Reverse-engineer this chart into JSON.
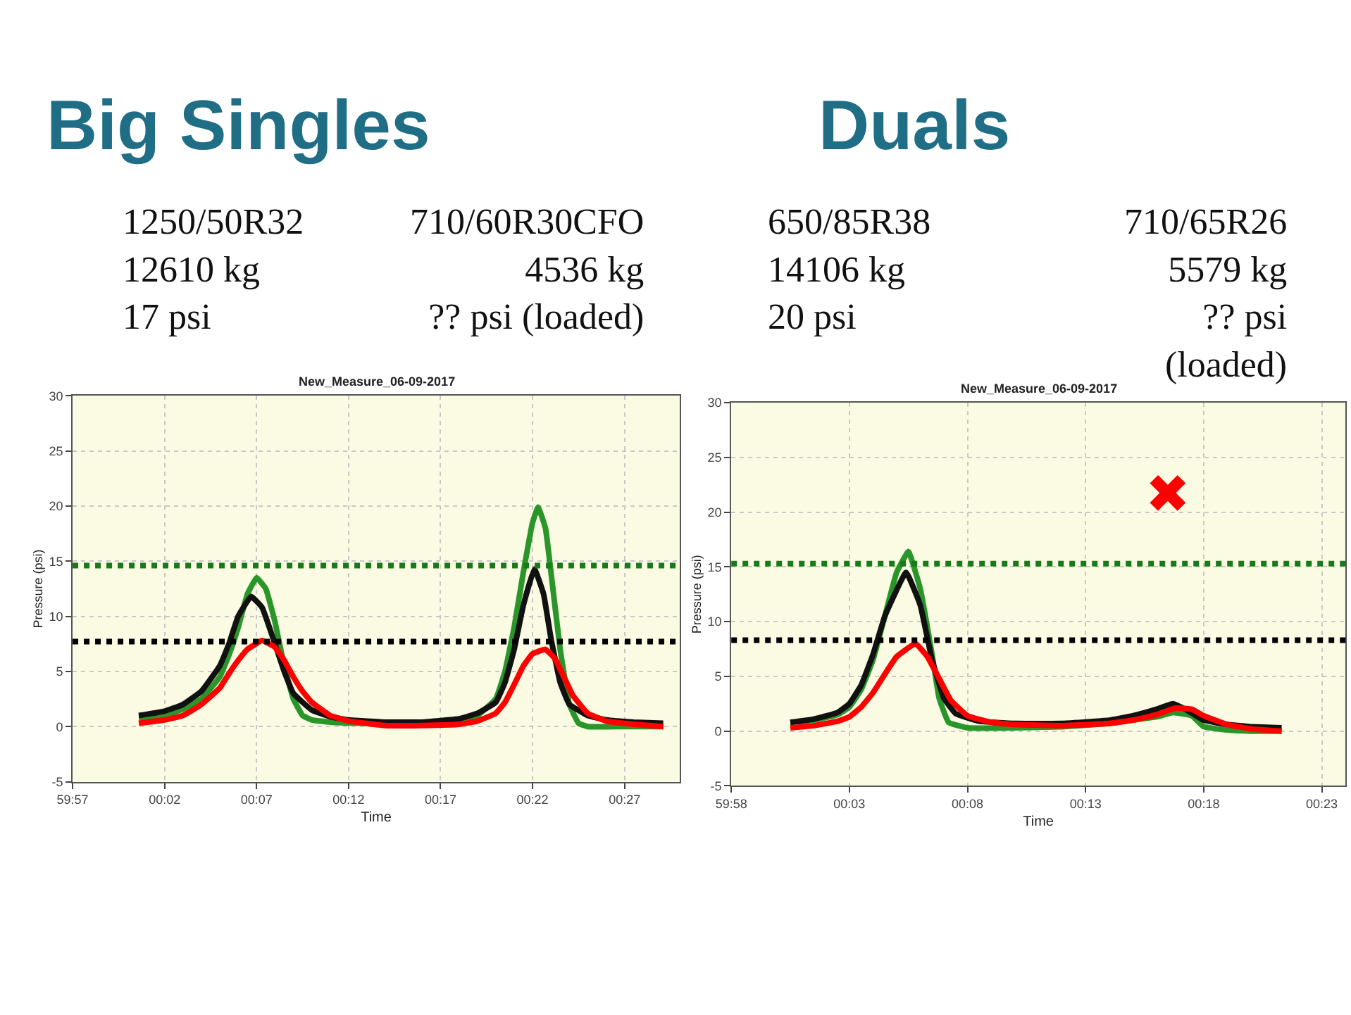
{
  "chart_data": [
    {
      "type": "line",
      "title": "Big Singles",
      "subtitle": "New_Measure_06-09-2017",
      "xlabel": "Time",
      "ylabel": "Pressure (psi)",
      "annotations": [
        "1250/50R32\n12610 kg\n17 psi",
        "710/60R30CFO\n4536 kg\n?? psi (loaded)"
      ],
      "xlim": [
        "2017-06-09T00:59:57",
        "2017-06-09T01:00:30"
      ],
      "xticks": [
        {
          "value": "2017-06-09T00:59:57",
          "label": "59:57"
        },
        {
          "value": "2017-06-09T01:00:02",
          "label": "00:02"
        },
        {
          "value": "2017-06-09T01:00:07",
          "label": "00:07"
        },
        {
          "value": "2017-06-09T01:00:12",
          "label": "00:12"
        },
        {
          "value": "2017-06-09T01:00:17",
          "label": "00:17"
        },
        {
          "value": "2017-06-09T01:00:22",
          "label": "00:22"
        },
        {
          "value": "2017-06-09T01:00:27",
          "label": "00:27"
        }
      ],
      "ylim": [
        -5,
        30
      ],
      "yticks": [
        -5,
        0,
        5,
        10,
        15,
        20,
        25,
        30
      ],
      "grid": true,
      "series": [
        {
          "color": "#2a962a",
          "x": [
            "2017-06-09T01:00:00.6",
            "2017-06-09T01:00:02",
            "2017-06-09T01:00:03",
            "2017-06-09T01:00:04",
            "2017-06-09T01:00:05",
            "2017-06-09T01:00:05.5",
            "2017-06-09T01:00:06",
            "2017-06-09T01:00:06.5",
            "2017-06-09T01:00:07",
            "2017-06-09T01:00:07.5",
            "2017-06-09T01:00:08",
            "2017-06-09T01:00:08.5",
            "2017-06-09T01:00:09",
            "2017-06-09T01:00:09.5",
            "2017-06-09T01:00:10",
            "2017-06-09T01:00:11",
            "2017-06-09T01:00:13",
            "2017-06-09T01:00:15",
            "2017-06-09T01:00:17",
            "2017-06-09T01:00:18",
            "2017-06-09T01:00:19",
            "2017-06-09T01:00:20",
            "2017-06-09T01:00:20.5",
            "2017-06-09T01:00:21",
            "2017-06-09T01:00:21.5",
            "2017-06-09T01:00:22",
            "2017-06-09T01:00:22.3",
            "2017-06-09T01:00:22.7",
            "2017-06-09T01:00:23",
            "2017-06-09T01:00:23.5",
            "2017-06-09T01:00:24",
            "2017-06-09T01:00:24.5",
            "2017-06-09T01:00:25",
            "2017-06-09T01:00:27",
            "2017-06-09T01:00:29.1"
          ],
          "values": [
            0.8,
            1.0,
            1.6,
            2.5,
            4.5,
            6.5,
            9,
            12,
            13.5,
            12.5,
            9.5,
            5.5,
            2.5,
            1.0,
            0.6,
            0.4,
            0.3,
            0.3,
            0.4,
            0.6,
            1.0,
            2.5,
            5,
            9,
            14,
            18.5,
            19.9,
            18,
            14,
            7,
            2,
            0.3,
            0,
            0,
            0
          ]
        },
        {
          "color": "#111111",
          "x": [
            "2017-06-09T01:00:00.6",
            "2017-06-09T01:00:02",
            "2017-06-09T01:00:03",
            "2017-06-09T01:00:04",
            "2017-06-09T01:00:05",
            "2017-06-09T01:00:05.5",
            "2017-06-09T01:00:06",
            "2017-06-09T01:00:06.7",
            "2017-06-09T01:00:07.3",
            "2017-06-09T01:00:08",
            "2017-06-09T01:00:08.5",
            "2017-06-09T01:00:09",
            "2017-06-09T01:00:10",
            "2017-06-09T01:00:11",
            "2017-06-09T01:00:12",
            "2017-06-09T01:00:14",
            "2017-06-09T01:00:16",
            "2017-06-09T01:00:18",
            "2017-06-09T01:00:19",
            "2017-06-09T01:00:20",
            "2017-06-09T01:00:20.5",
            "2017-06-09T01:00:21",
            "2017-06-09T01:00:21.5",
            "2017-06-09T01:00:22.1",
            "2017-06-09T01:00:22.6",
            "2017-06-09T01:00:23",
            "2017-06-09T01:00:23.5",
            "2017-06-09T01:00:24",
            "2017-06-09T01:00:25",
            "2017-06-09T01:00:26",
            "2017-06-09T01:00:27.5",
            "2017-06-09T01:00:29.1"
          ],
          "values": [
            1.0,
            1.4,
            2.0,
            3.2,
            5.5,
            7.5,
            10,
            11.8,
            10.8,
            7.5,
            5,
            3,
            1.5,
            0.9,
            0.6,
            0.4,
            0.4,
            0.7,
            1.2,
            2.2,
            4,
            7,
            11,
            14.3,
            12,
            8,
            4,
            2,
            1,
            0.6,
            0.4,
            0.3
          ]
        },
        {
          "color": "#ff0000",
          "x": [
            "2017-06-09T01:00:00.6",
            "2017-06-09T01:00:02",
            "2017-06-09T01:00:03",
            "2017-06-09T01:00:04",
            "2017-06-09T01:00:05",
            "2017-06-09T01:00:05.5",
            "2017-06-09T01:00:06",
            "2017-06-09T01:00:06.5",
            "2017-06-09T01:00:07.3",
            "2017-06-09T01:00:08",
            "2017-06-09T01:00:08.5",
            "2017-06-09T01:00:09",
            "2017-06-09T01:00:09.5",
            "2017-06-09T01:00:10",
            "2017-06-09T01:00:11",
            "2017-06-09T01:00:12",
            "2017-06-09T01:00:14",
            "2017-06-09T01:00:16",
            "2017-06-09T01:00:18",
            "2017-06-09T01:00:19",
            "2017-06-09T01:00:20",
            "2017-06-09T01:00:20.5",
            "2017-06-09T01:00:21",
            "2017-06-09T01:00:21.5",
            "2017-06-09T01:00:22",
            "2017-06-09T01:00:22.7",
            "2017-06-09T01:00:23.2",
            "2017-06-09T01:00:23.7",
            "2017-06-09T01:00:24.2",
            "2017-06-09T01:00:25",
            "2017-06-09T01:00:26",
            "2017-06-09T01:00:27.5",
            "2017-06-09T01:00:29.1"
          ],
          "values": [
            0.3,
            0.6,
            1.0,
            2.0,
            3.5,
            4.8,
            6.0,
            7.0,
            7.8,
            7.2,
            6,
            4.5,
            3.2,
            2.2,
            1.0,
            0.5,
            0.1,
            0.1,
            0.2,
            0.5,
            1.2,
            2.2,
            3.8,
            5.5,
            6.6,
            7.0,
            6.2,
            4.5,
            2.8,
            1.2,
            0.5,
            0.2,
            0
          ]
        }
      ],
      "ref_lines": [
        {
          "axis": "y",
          "value": 14.6,
          "color": "#1a7a1a",
          "line_style": "dotted"
        },
        {
          "axis": "y",
          "value": 7.7,
          "color": "#000000",
          "line_style": "dotted"
        }
      ]
    },
    {
      "type": "line",
      "title": "Duals",
      "subtitle": "New_Measure_06-09-2017",
      "xlabel": "Time",
      "ylabel": "Pressure (psi)",
      "annotations": [
        "650/85R38\n14106 kg\n20 psi",
        "710/65R26\n5579 kg\n?? psi\n(loaded)",
        "✖"
      ],
      "xlim": [
        "2017-06-09T00:59:58",
        "2017-06-09T01:00:24"
      ],
      "xticks": [
        {
          "value": "2017-06-09T00:59:58",
          "label": "59:58"
        },
        {
          "value": "2017-06-09T01:00:03",
          "label": "00:03"
        },
        {
          "value": "2017-06-09T01:00:08",
          "label": "00:08"
        },
        {
          "value": "2017-06-09T01:00:13",
          "label": "00:13"
        },
        {
          "value": "2017-06-09T01:00:18",
          "label": "00:18"
        },
        {
          "value": "2017-06-09T01:00:23",
          "label": "00:23"
        }
      ],
      "ylim": [
        -5,
        30
      ],
      "yticks": [
        -5,
        0,
        5,
        10,
        15,
        20,
        25,
        30
      ],
      "grid": true,
      "series": [
        {
          "color": "#2a962a",
          "x": [
            "2017-06-09T01:00:00.5",
            "2017-06-09T01:00:01.5",
            "2017-06-09T01:00:02.5",
            "2017-06-09T01:00:03",
            "2017-06-09T01:00:03.5",
            "2017-06-09T01:00:04",
            "2017-06-09T01:00:04.5",
            "2017-06-09T01:00:05",
            "2017-06-09T01:00:05.5",
            "2017-06-09T01:00:06",
            "2017-06-09T01:00:06.5",
            "2017-06-09T01:00:06.8",
            "2017-06-09T01:00:07.2",
            "2017-06-09T01:00:08",
            "2017-06-09T01:00:10",
            "2017-06-09T01:00:12",
            "2017-06-09T01:00:14",
            "2017-06-09T01:00:15",
            "2017-06-09T01:00:16",
            "2017-06-09T01:00:16.7",
            "2017-06-09T01:00:17.5",
            "2017-06-09T01:00:18",
            "2017-06-09T01:00:19",
            "2017-06-09T01:00:20",
            "2017-06-09T01:00:21.3"
          ],
          "values": [
            0.8,
            1.0,
            1.5,
            2.2,
            3.8,
            6.5,
            10.5,
            14.5,
            16.4,
            13,
            7,
            3,
            0.8,
            0.3,
            0.3,
            0.4,
            0.7,
            1.0,
            1.3,
            1.7,
            1.4,
            0.4,
            0.1,
            0,
            0
          ]
        },
        {
          "color": "#111111",
          "x": [
            "2017-06-09T01:00:00.5",
            "2017-06-09T01:00:01.5",
            "2017-06-09T01:00:02.5",
            "2017-06-09T01:00:03",
            "2017-06-09T01:00:03.5",
            "2017-06-09T01:00:04",
            "2017-06-09T01:00:04.5",
            "2017-06-09T01:00:05.4",
            "2017-06-09T01:00:06",
            "2017-06-09T01:00:06.5",
            "2017-06-09T01:00:07",
            "2017-06-09T01:00:07.5",
            "2017-06-09T01:00:08.5",
            "2017-06-09T01:00:10",
            "2017-06-09T01:00:12",
            "2017-06-09T01:00:14",
            "2017-06-09T01:00:15",
            "2017-06-09T01:00:16",
            "2017-06-09T01:00:16.7",
            "2017-06-09T01:00:17.3",
            "2017-06-09T01:00:18",
            "2017-06-09T01:00:19",
            "2017-06-09T01:00:20",
            "2017-06-09T01:00:21.3"
          ],
          "values": [
            0.8,
            1.1,
            1.7,
            2.5,
            4.2,
            7,
            10.5,
            14.5,
            11.5,
            6.5,
            3,
            1.6,
            0.9,
            0.7,
            0.7,
            1.0,
            1.4,
            2.0,
            2.5,
            1.9,
            1.0,
            0.6,
            0.4,
            0.3
          ]
        },
        {
          "color": "#ff0000",
          "x": [
            "2017-06-09T01:00:00.5",
            "2017-06-09T01:00:01.5",
            "2017-06-09T01:00:02.5",
            "2017-06-09T01:00:03",
            "2017-06-09T01:00:03.5",
            "2017-06-09T01:00:04",
            "2017-06-09T01:00:04.5",
            "2017-06-09T01:00:05",
            "2017-06-09T01:00:05.8",
            "2017-06-09T01:00:06.3",
            "2017-06-09T01:00:06.8",
            "2017-06-09T01:00:07.3",
            "2017-06-09T01:00:08",
            "2017-06-09T01:00:09",
            "2017-06-09T01:00:10",
            "2017-06-09T01:00:12",
            "2017-06-09T01:00:14",
            "2017-06-09T01:00:15",
            "2017-06-09T01:00:16",
            "2017-06-09T01:00:16.8",
            "2017-06-09T01:00:17.5",
            "2017-06-09T01:00:18",
            "2017-06-09T01:00:19",
            "2017-06-09T01:00:20",
            "2017-06-09T01:00:21.3"
          ],
          "values": [
            0.3,
            0.5,
            0.9,
            1.3,
            2.2,
            3.5,
            5.2,
            6.8,
            8.0,
            6.8,
            4.8,
            2.8,
            1.4,
            0.8,
            0.6,
            0.5,
            0.7,
            1.0,
            1.5,
            2.1,
            2.0,
            1.4,
            0.6,
            0.2,
            0
          ]
        }
      ],
      "ref_lines": [
        {
          "axis": "y",
          "value": 15.3,
          "color": "#1a7a1a",
          "line_style": "dotted"
        },
        {
          "axis": "y",
          "value": 8.3,
          "color": "#000000",
          "line_style": "dotted"
        }
      ]
    }
  ]
}
